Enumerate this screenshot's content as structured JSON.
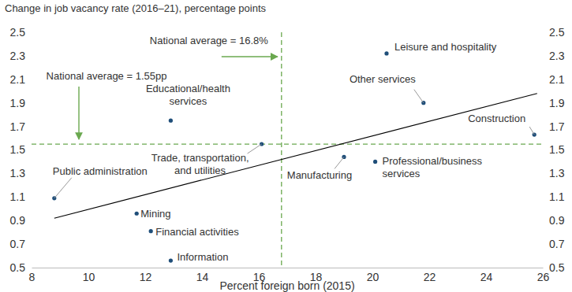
{
  "chart_data": {
    "type": "scatter",
    "y_label": "Change in job vacancy rate (2016–21), percentage points",
    "x_label": "Percent foreign born (2015)",
    "labels": [
      "Public administration",
      "Mining",
      "Financial activities",
      "Information",
      "Educational/health services",
      "Trade, transportation, and utilities",
      "Manufacturing",
      "Professional/business services",
      "Leisure and hospitality",
      "Other services",
      "Construction"
    ],
    "x": [
      8.8,
      11.7,
      12.2,
      12.9,
      12.9,
      16.1,
      19.0,
      20.1,
      20.5,
      21.8,
      25.7
    ],
    "values": [
      1.09,
      0.96,
      0.81,
      0.56,
      1.75,
      1.55,
      1.44,
      1.4,
      2.32,
      1.9,
      1.63
    ],
    "color": "#1f4e79",
    "marker": "circle",
    "grid": false,
    "xlim": [
      8,
      26
    ],
    "xticks": [
      8,
      10,
      12,
      14,
      16,
      18,
      20,
      22,
      24,
      26
    ],
    "ylim": [
      0.5,
      2.5
    ],
    "yticks": [
      0.5,
      0.7,
      0.9,
      1.1,
      1.3,
      1.5,
      1.7,
      1.9,
      2.1,
      2.3,
      2.5
    ],
    "y2lim": [
      0.5,
      2.5
    ],
    "y2ticks": [
      0.5,
      0.7,
      0.9,
      1.1,
      1.3,
      1.5,
      1.7,
      1.9,
      2.1,
      2.3,
      2.5
    ],
    "trend_line": {
      "x": [
        8.8,
        25.8
      ],
      "values": [
        0.92,
        1.98
      ],
      "color": "#000000"
    },
    "reference_lines": [
      {
        "axis": "x",
        "value": 16.8,
        "label": "National average = 16.8%",
        "color": "#6aa84f",
        "line_style": "dashed"
      },
      {
        "axis": "y",
        "value": 1.55,
        "label": "National average = 1.55pp",
        "color": "#6aa84f",
        "line_style": "dashed"
      }
    ]
  }
}
